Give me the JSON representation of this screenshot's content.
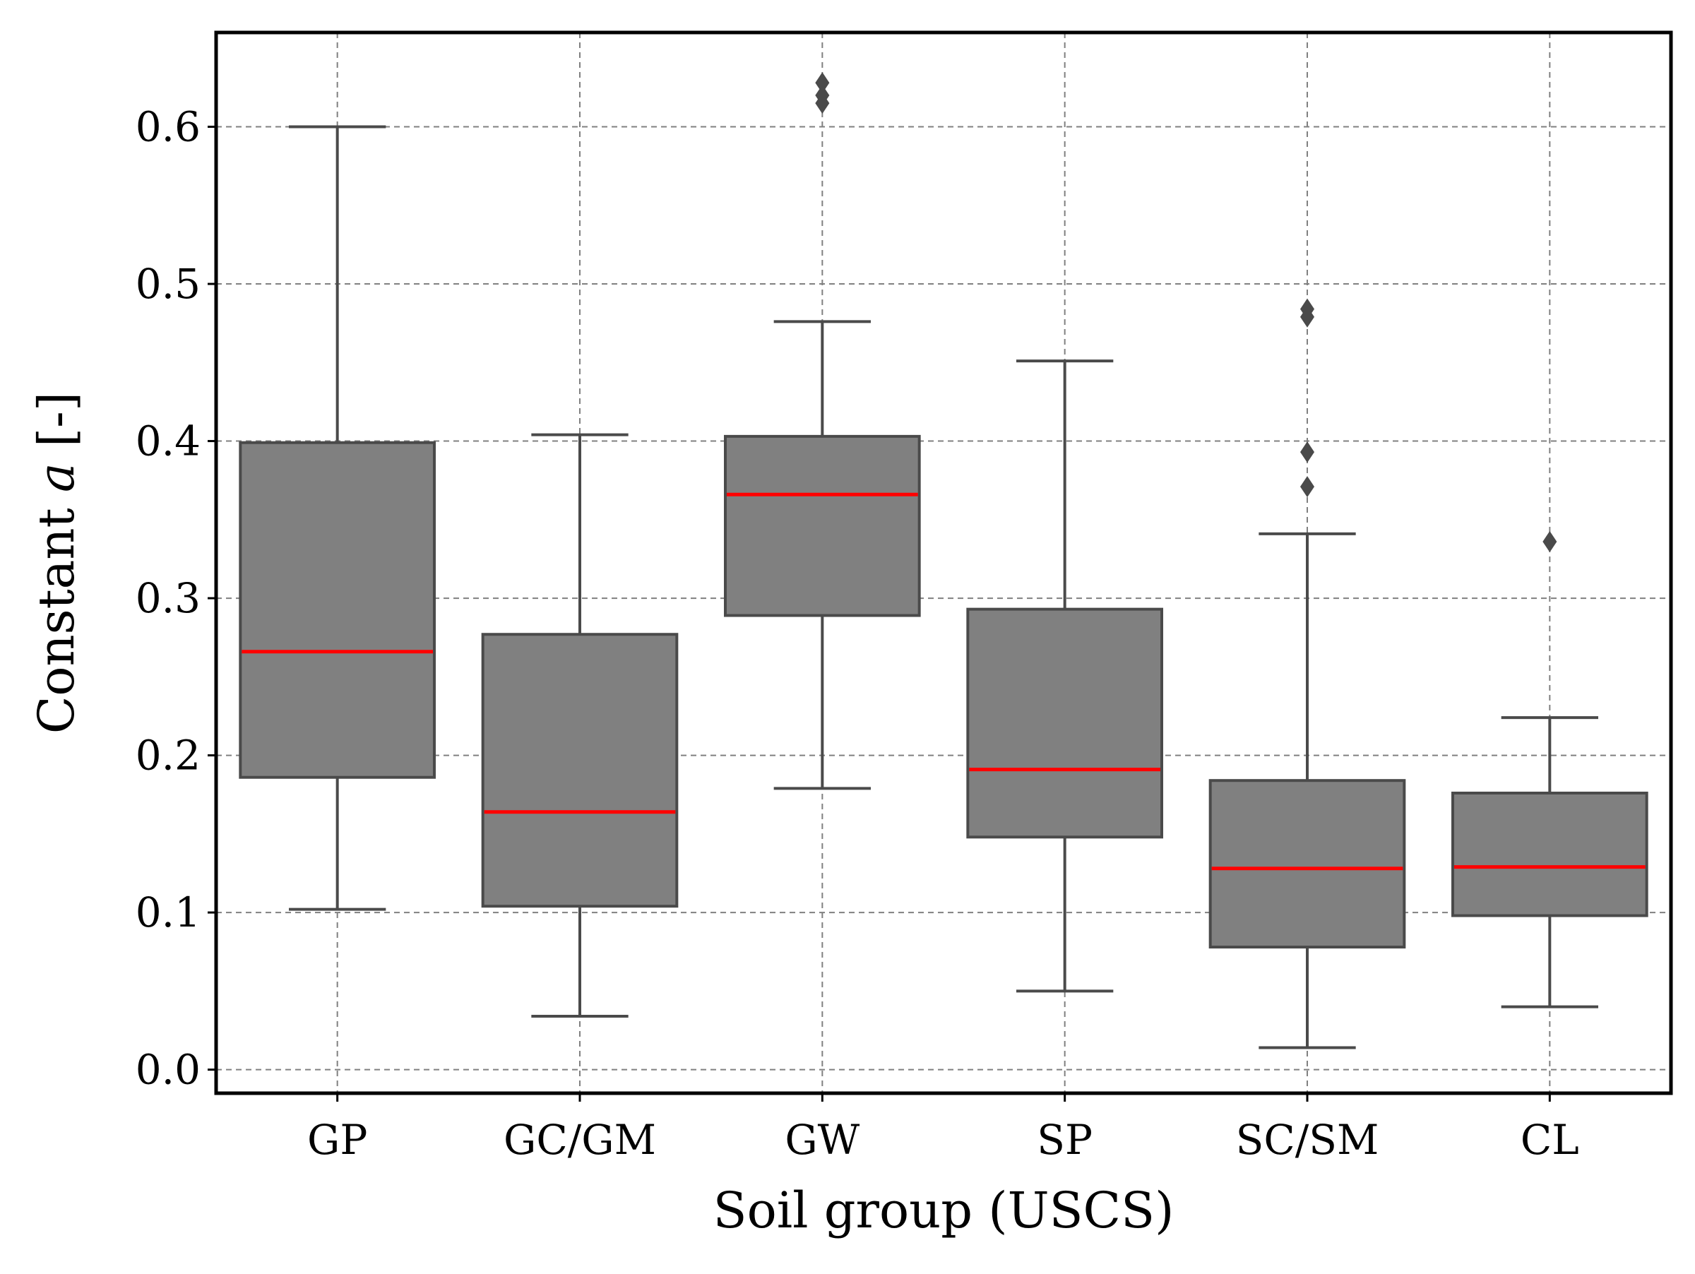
{
  "chart_data": {
    "type": "box",
    "xlabel": "Soil group (USCS)",
    "ylabel_prefix": "Constant ",
    "ylabel_var": "a",
    "ylabel_suffix": " [-]",
    "ylim": [
      -0.015,
      0.66
    ],
    "yticks": [
      0.0,
      0.1,
      0.2,
      0.3,
      0.4,
      0.5,
      0.6
    ],
    "ytick_labels": [
      "0.0",
      "0.1",
      "0.2",
      "0.3",
      "0.4",
      "0.5",
      "0.6"
    ],
    "grid": true,
    "categories": [
      "GP",
      "GC/GM",
      "GW",
      "SP",
      "SC/SM",
      "CL"
    ],
    "boxes": [
      {
        "category": "GP",
        "whisker_low": 0.102,
        "q1": 0.186,
        "median": 0.266,
        "q3": 0.399,
        "whisker_high": 0.6,
        "outliers": []
      },
      {
        "category": "GC/GM",
        "whisker_low": 0.034,
        "q1": 0.104,
        "median": 0.164,
        "q3": 0.277,
        "whisker_high": 0.404,
        "outliers": []
      },
      {
        "category": "GW",
        "whisker_low": 0.179,
        "q1": 0.289,
        "median": 0.366,
        "q3": 0.403,
        "whisker_high": 0.476,
        "outliers": [
          0.615,
          0.62,
          0.628
        ]
      },
      {
        "category": "SP",
        "whisker_low": 0.05,
        "q1": 0.148,
        "median": 0.191,
        "q3": 0.293,
        "whisker_high": 0.451,
        "outliers": []
      },
      {
        "category": "SC/SM",
        "whisker_low": 0.014,
        "q1": 0.078,
        "median": 0.128,
        "q3": 0.184,
        "whisker_high": 0.341,
        "outliers": [
          0.371,
          0.393,
          0.479,
          0.484
        ]
      },
      {
        "category": "CL",
        "whisker_low": 0.04,
        "q1": 0.098,
        "median": 0.129,
        "q3": 0.176,
        "whisker_high": 0.224,
        "outliers": [
          0.336
        ]
      }
    ],
    "colors": {
      "box_fill": "#808080",
      "box_edge": "#4a4a4a",
      "median": "#ff0000",
      "grid": "#808080",
      "frame": "#000000"
    }
  }
}
